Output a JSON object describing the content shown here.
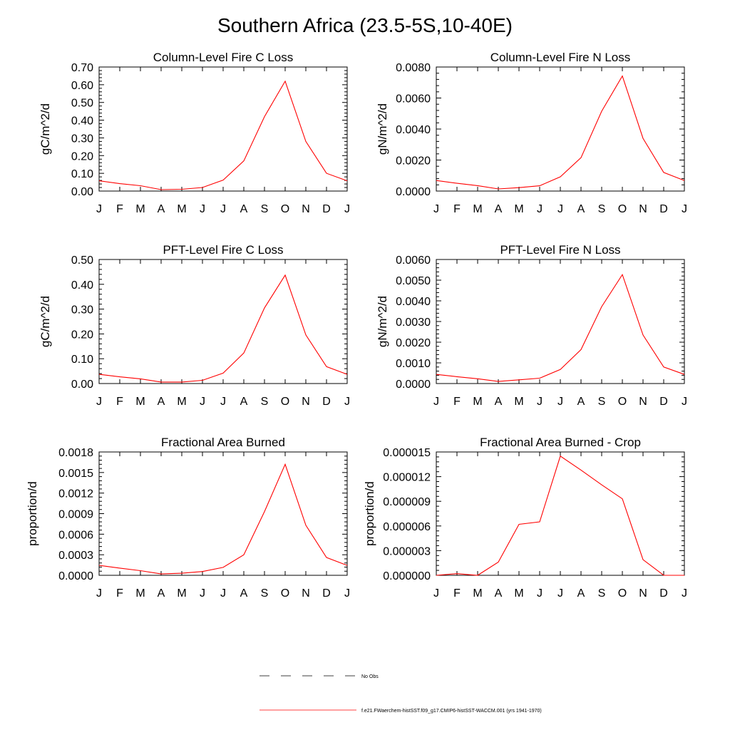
{
  "page_title": "Southern Africa (23.5-5S,10-40E)",
  "months": [
    "J",
    "F",
    "M",
    "A",
    "M",
    "J",
    "J",
    "A",
    "S",
    "O",
    "N",
    "D",
    "J"
  ],
  "colors": {
    "model_line": "#ff0000",
    "axis": "#000000",
    "obs_dash": "#000000"
  },
  "legend": {
    "obs_label": "No Obs",
    "model_label": "f.e21.FWaerchem-histSST.f09_g17.CMIP6-histSST-WACCM.001 (yrs 1941-1970)"
  },
  "chart_data": [
    {
      "type": "line",
      "title": "Column-Level Fire C Loss",
      "ylabel": "gC/m^2/d",
      "ylim": [
        0,
        0.7
      ],
      "yticks": [
        "0.00",
        "0.10",
        "0.20",
        "0.30",
        "0.40",
        "0.50",
        "0.60",
        "0.70"
      ],
      "categories": [
        "J",
        "F",
        "M",
        "A",
        "M",
        "J",
        "J",
        "A",
        "S",
        "O",
        "N",
        "D",
        "J"
      ],
      "values": [
        0.058,
        0.042,
        0.03,
        0.008,
        0.01,
        0.02,
        0.062,
        0.17,
        0.42,
        0.62,
        0.28,
        0.1,
        0.058
      ]
    },
    {
      "type": "line",
      "title": "Column-Level Fire N Loss",
      "ylabel": "gN/m^2/d",
      "ylim": [
        0,
        0.008
      ],
      "yticks": [
        "0.0000",
        "0.0020",
        "0.0040",
        "0.0060",
        "0.0080"
      ],
      "categories": [
        "J",
        "F",
        "M",
        "A",
        "M",
        "J",
        "J",
        "A",
        "S",
        "O",
        "N",
        "D",
        "J"
      ],
      "values": [
        0.00068,
        0.0005,
        0.00035,
        0.00014,
        0.00022,
        0.00034,
        0.00092,
        0.00215,
        0.00515,
        0.00742,
        0.0034,
        0.0012,
        0.00068
      ]
    },
    {
      "type": "line",
      "title": "PFT-Level Fire C Loss",
      "ylabel": "gC/m^2/d",
      "ylim": [
        0,
        0.5
      ],
      "yticks": [
        "0.00",
        "0.10",
        "0.20",
        "0.30",
        "0.40",
        "0.50"
      ],
      "categories": [
        "J",
        "F",
        "M",
        "A",
        "M",
        "J",
        "J",
        "A",
        "S",
        "O",
        "N",
        "D",
        "J"
      ],
      "values": [
        0.037,
        0.027,
        0.019,
        0.006,
        0.006,
        0.013,
        0.042,
        0.123,
        0.305,
        0.437,
        0.196,
        0.068,
        0.037
      ]
    },
    {
      "type": "line",
      "title": "PFT-Level Fire N Loss",
      "ylabel": "gN/m^2/d",
      "ylim": [
        0,
        0.006
      ],
      "yticks": [
        "0.0000",
        "0.0010",
        "0.0020",
        "0.0030",
        "0.0040",
        "0.0050",
        "0.0060"
      ],
      "categories": [
        "J",
        "F",
        "M",
        "A",
        "M",
        "J",
        "J",
        "A",
        "S",
        "O",
        "N",
        "D",
        "J"
      ],
      "values": [
        0.00044,
        0.00033,
        0.00023,
        0.0001,
        0.00018,
        0.00026,
        0.00068,
        0.00164,
        0.00372,
        0.00527,
        0.00235,
        0.0008,
        0.00044
      ]
    },
    {
      "type": "line",
      "title": "Fractional Area Burned",
      "ylabel": "proportion/d",
      "ylim": [
        0,
        0.0018
      ],
      "yticks": [
        "0.0000",
        "0.0003",
        "0.0006",
        "0.0009",
        "0.0012",
        "0.0015",
        "0.0018"
      ],
      "categories": [
        "J",
        "F",
        "M",
        "A",
        "M",
        "J",
        "J",
        "A",
        "S",
        "O",
        "N",
        "D",
        "J"
      ],
      "values": [
        0.000145,
        0.000105,
        6.8e-05,
        2e-05,
        3e-05,
        5.5e-05,
        0.000115,
        0.0003,
        0.00093,
        0.00162,
        0.00073,
        0.00026,
        0.000145
      ]
    },
    {
      "type": "line",
      "title": "Fractional Area Burned - Crop",
      "ylabel": "proportion/d",
      "ylim": [
        0,
        1.5e-05
      ],
      "yticks": [
        "0.000000",
        "0.000003",
        "0.000006",
        "0.000009",
        "0.000012",
        "0.000015"
      ],
      "categories": [
        "J",
        "F",
        "M",
        "A",
        "M",
        "J",
        "J",
        "A",
        "S",
        "O",
        "N",
        "D",
        "J"
      ],
      "values": [
        0.0,
        2e-07,
        0.0,
        1.6e-06,
        6.2e-06,
        6.5e-06,
        1.45e-05,
        1.28e-05,
        1.1e-05,
        9.3e-06,
        1.9e-06,
        0.0,
        0.0
      ]
    }
  ]
}
